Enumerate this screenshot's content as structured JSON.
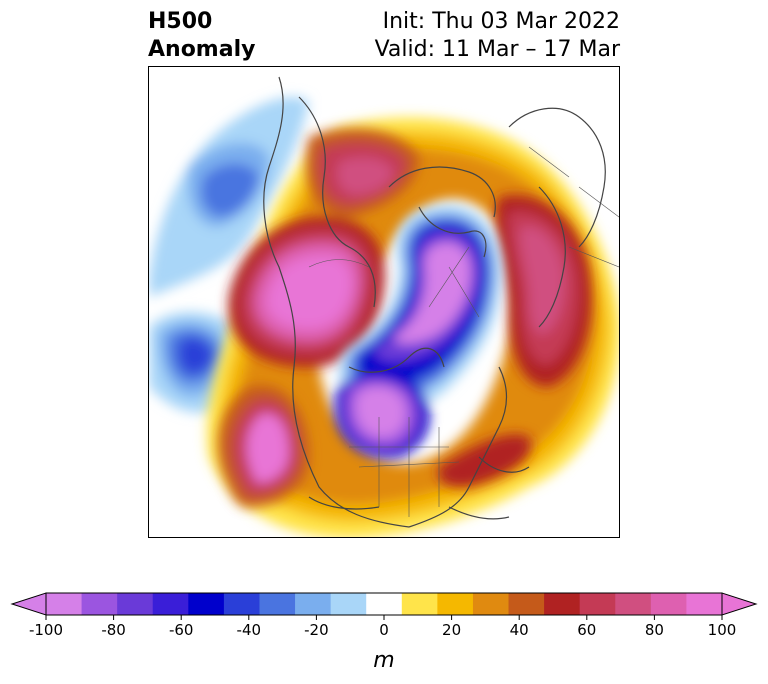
{
  "header": {
    "title_line1": "H500",
    "title_line2": "Anomaly",
    "init_label": "Init: Thu 03 Mar 2022",
    "valid_label": "Valid: 11 Mar – 17 Mar"
  },
  "colorbar": {
    "unit_label": "m",
    "ticks": [
      "-100",
      "-80",
      "-60",
      "-40",
      "-20",
      "0",
      "20",
      "40",
      "60",
      "80",
      "100"
    ],
    "levels": [
      -100,
      -90,
      -80,
      -70,
      -60,
      -50,
      -40,
      -30,
      -20,
      -10,
      10,
      20,
      30,
      40,
      50,
      60,
      70,
      80,
      90,
      100
    ],
    "colors": [
      "#d580e8",
      "#9b55e0",
      "#6a3ad8",
      "#3a1ed8",
      "#0000cc",
      "#2a3fd8",
      "#4a74e0",
      "#7aaeee",
      "#a9d6f8",
      "#ffffff",
      "#ffe44a",
      "#f5b800",
      "#e08a10",
      "#c55a1a",
      "#b02222",
      "#c43a55",
      "#d04f80",
      "#de60b0",
      "#e874d6"
    ],
    "extend_min_color": "#d580e8",
    "extend_max_color": "#e874d6"
  }
}
